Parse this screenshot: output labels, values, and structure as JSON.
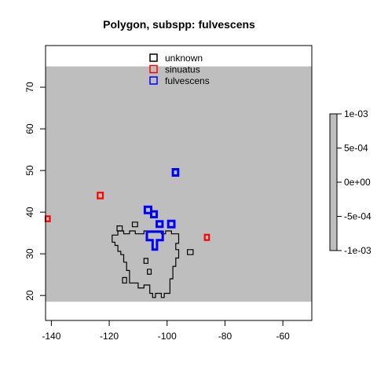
{
  "chart_data": {
    "type": "map",
    "title": "Polygon, subspp: fulvescens",
    "xlim": [
      -142,
      -50
    ],
    "ylim": [
      14,
      80
    ],
    "x_ticks": [
      -140,
      -120,
      -100,
      -80,
      -60
    ],
    "y_ticks": [
      20,
      30,
      40,
      50,
      60,
      70
    ],
    "background_band": {
      "y_range": [
        18.5,
        75
      ],
      "color": "#bebebe"
    },
    "legend": {
      "placement": "top-center",
      "entries": [
        {
          "label": "unknown",
          "color": "#000000"
        },
        {
          "label": "sinuatus",
          "color": "#ff0000"
        },
        {
          "label": "fulvescens",
          "color": "#0000ff"
        }
      ]
    },
    "colorbar": {
      "ticks": [
        "1e-03",
        "5e-04",
        "0e+00",
        "-5e-04",
        "-1e-03"
      ],
      "color": "#bebebe"
    },
    "series": [
      {
        "name": "unknown",
        "color": "#000000",
        "polygons": [
          [
            [
              -106,
              35.5
            ],
            [
              -102,
              35.5
            ],
            [
              -102,
              34.8
            ],
            [
              -100.5,
              34.8
            ],
            [
              -100.5,
              35.5
            ],
            [
              -98.5,
              35.5
            ],
            [
              -98.5,
              34.8
            ],
            [
              -96,
              34.8
            ],
            [
              -96,
              32.5
            ],
            [
              -97,
              32.5
            ],
            [
              -97,
              31
            ],
            [
              -96,
              31
            ],
            [
              -96,
              29
            ],
            [
              -97,
              29
            ],
            [
              -97,
              27
            ],
            [
              -98,
              27
            ],
            [
              -98,
              24
            ],
            [
              -99,
              24
            ],
            [
              -99,
              20.5
            ],
            [
              -101,
              20.5
            ],
            [
              -101,
              19.5
            ],
            [
              -102,
              19.5
            ],
            [
              -102,
              20.5
            ],
            [
              -104,
              20.5
            ],
            [
              -104,
              19.5
            ],
            [
              -105,
              19.5
            ],
            [
              -105,
              20.5
            ],
            [
              -106,
              20.5
            ],
            [
              -106,
              22.5
            ],
            [
              -108,
              22.5
            ],
            [
              -108,
              21.8
            ],
            [
              -110,
              21.8
            ],
            [
              -110,
              23
            ],
            [
              -113,
              23
            ],
            [
              -113,
              26
            ],
            [
              -114,
              26
            ],
            [
              -114,
              28
            ],
            [
              -115,
              28
            ],
            [
              -115,
              29.8
            ],
            [
              -116,
              29.8
            ],
            [
              -116,
              30.6
            ],
            [
              -117,
              30.6
            ],
            [
              -117,
              32
            ],
            [
              -118,
              32
            ],
            [
              -118,
              32.8
            ],
            [
              -119,
              32.8
            ],
            [
              -119,
              34.5
            ],
            [
              -117,
              34.5
            ],
            [
              -117,
              35.5
            ],
            [
              -115,
              35.5
            ],
            [
              -115,
              34.8
            ],
            [
              -113,
              34.8
            ],
            [
              -113,
              35.5
            ],
            [
              -111,
              35.5
            ],
            [
              -111,
              34.8
            ],
            [
              -108,
              34.8
            ],
            [
              -108,
              35.5
            ],
            [
              -106,
              35.5
            ]
          ],
          [
            [
              -117.3,
              35.5
            ],
            [
              -115.5,
              35.5
            ],
            [
              -115.5,
              36.7
            ],
            [
              -117.3,
              36.7
            ],
            [
              -117.3,
              35.5
            ]
          ],
          [
            [
              -112,
              36.5
            ],
            [
              -110.2,
              36.5
            ],
            [
              -110.2,
              37.6
            ],
            [
              -112,
              37.6
            ],
            [
              -112,
              36.5
            ]
          ],
          [
            [
              -93,
              29.8
            ],
            [
              -91,
              29.8
            ],
            [
              -91,
              31
            ],
            [
              -93,
              31
            ],
            [
              -93,
              29.8
            ]
          ],
          [
            [
              -108,
              27.7
            ],
            [
              -106.6,
              27.7
            ],
            [
              -106.6,
              28.9
            ],
            [
              -108,
              28.9
            ],
            [
              -108,
              27.7
            ]
          ],
          [
            [
              -106.8,
              25.1
            ],
            [
              -105.5,
              25.1
            ],
            [
              -105.5,
              26.3
            ],
            [
              -106.8,
              26.3
            ],
            [
              -106.8,
              25.1
            ]
          ],
          [
            [
              -115.4,
              23
            ],
            [
              -114,
              23
            ],
            [
              -114,
              24.3
            ],
            [
              -115.4,
              24.3
            ],
            [
              -115.4,
              23
            ]
          ]
        ]
      },
      {
        "name": "sinuatus",
        "color": "#ff0000",
        "polygons": [
          [
            [
              -142,
              37.8
            ],
            [
              -140.5,
              37.8
            ],
            [
              -140.5,
              39
            ],
            [
              -142,
              39
            ],
            [
              -142,
              37.8
            ]
          ],
          [
            [
              -124,
              43.3
            ],
            [
              -122.2,
              43.3
            ],
            [
              -122.2,
              44.7
            ],
            [
              -124,
              44.7
            ],
            [
              -124,
              43.3
            ]
          ],
          [
            [
              -87,
              33.3
            ],
            [
              -85.5,
              33.3
            ],
            [
              -85.5,
              34.6
            ],
            [
              -87,
              34.6
            ],
            [
              -87,
              33.3
            ]
          ]
        ]
      },
      {
        "name": "fulvescens",
        "color": "#0000ff",
        "polygons": [
          [
            [
              -98,
              48.8
            ],
            [
              -96.2,
              48.8
            ],
            [
              -96.2,
              50.3
            ],
            [
              -98,
              50.3
            ],
            [
              -98,
              48.8
            ]
          ],
          [
            [
              -107.7,
              39.8
            ],
            [
              -105.5,
              39.8
            ],
            [
              -105.5,
              41.3
            ],
            [
              -107.7,
              41.3
            ],
            [
              -107.7,
              39.8
            ]
          ],
          [
            [
              -105.5,
              38.8
            ],
            [
              -103.6,
              38.8
            ],
            [
              -103.6,
              40.2
            ],
            [
              -105.5,
              40.2
            ],
            [
              -105.5,
              38.8
            ]
          ],
          [
            [
              -103.6,
              36.5
            ],
            [
              -101.6,
              36.5
            ],
            [
              -101.6,
              37.8
            ],
            [
              -103.6,
              37.8
            ],
            [
              -103.6,
              36.5
            ]
          ],
          [
            [
              -99.6,
              36.4
            ],
            [
              -97.5,
              36.4
            ],
            [
              -97.5,
              37.9
            ],
            [
              -99.6,
              37.9
            ],
            [
              -99.6,
              36.4
            ]
          ],
          [
            [
              -107,
              33.3
            ],
            [
              -105,
              33.3
            ],
            [
              -105,
              31
            ],
            [
              -103.5,
              31
            ],
            [
              -103.5,
              33.3
            ],
            [
              -101.5,
              33.3
            ],
            [
              -101.5,
              35.3
            ],
            [
              -107,
              35.3
            ],
            [
              -107,
              33.3
            ]
          ]
        ]
      }
    ]
  }
}
